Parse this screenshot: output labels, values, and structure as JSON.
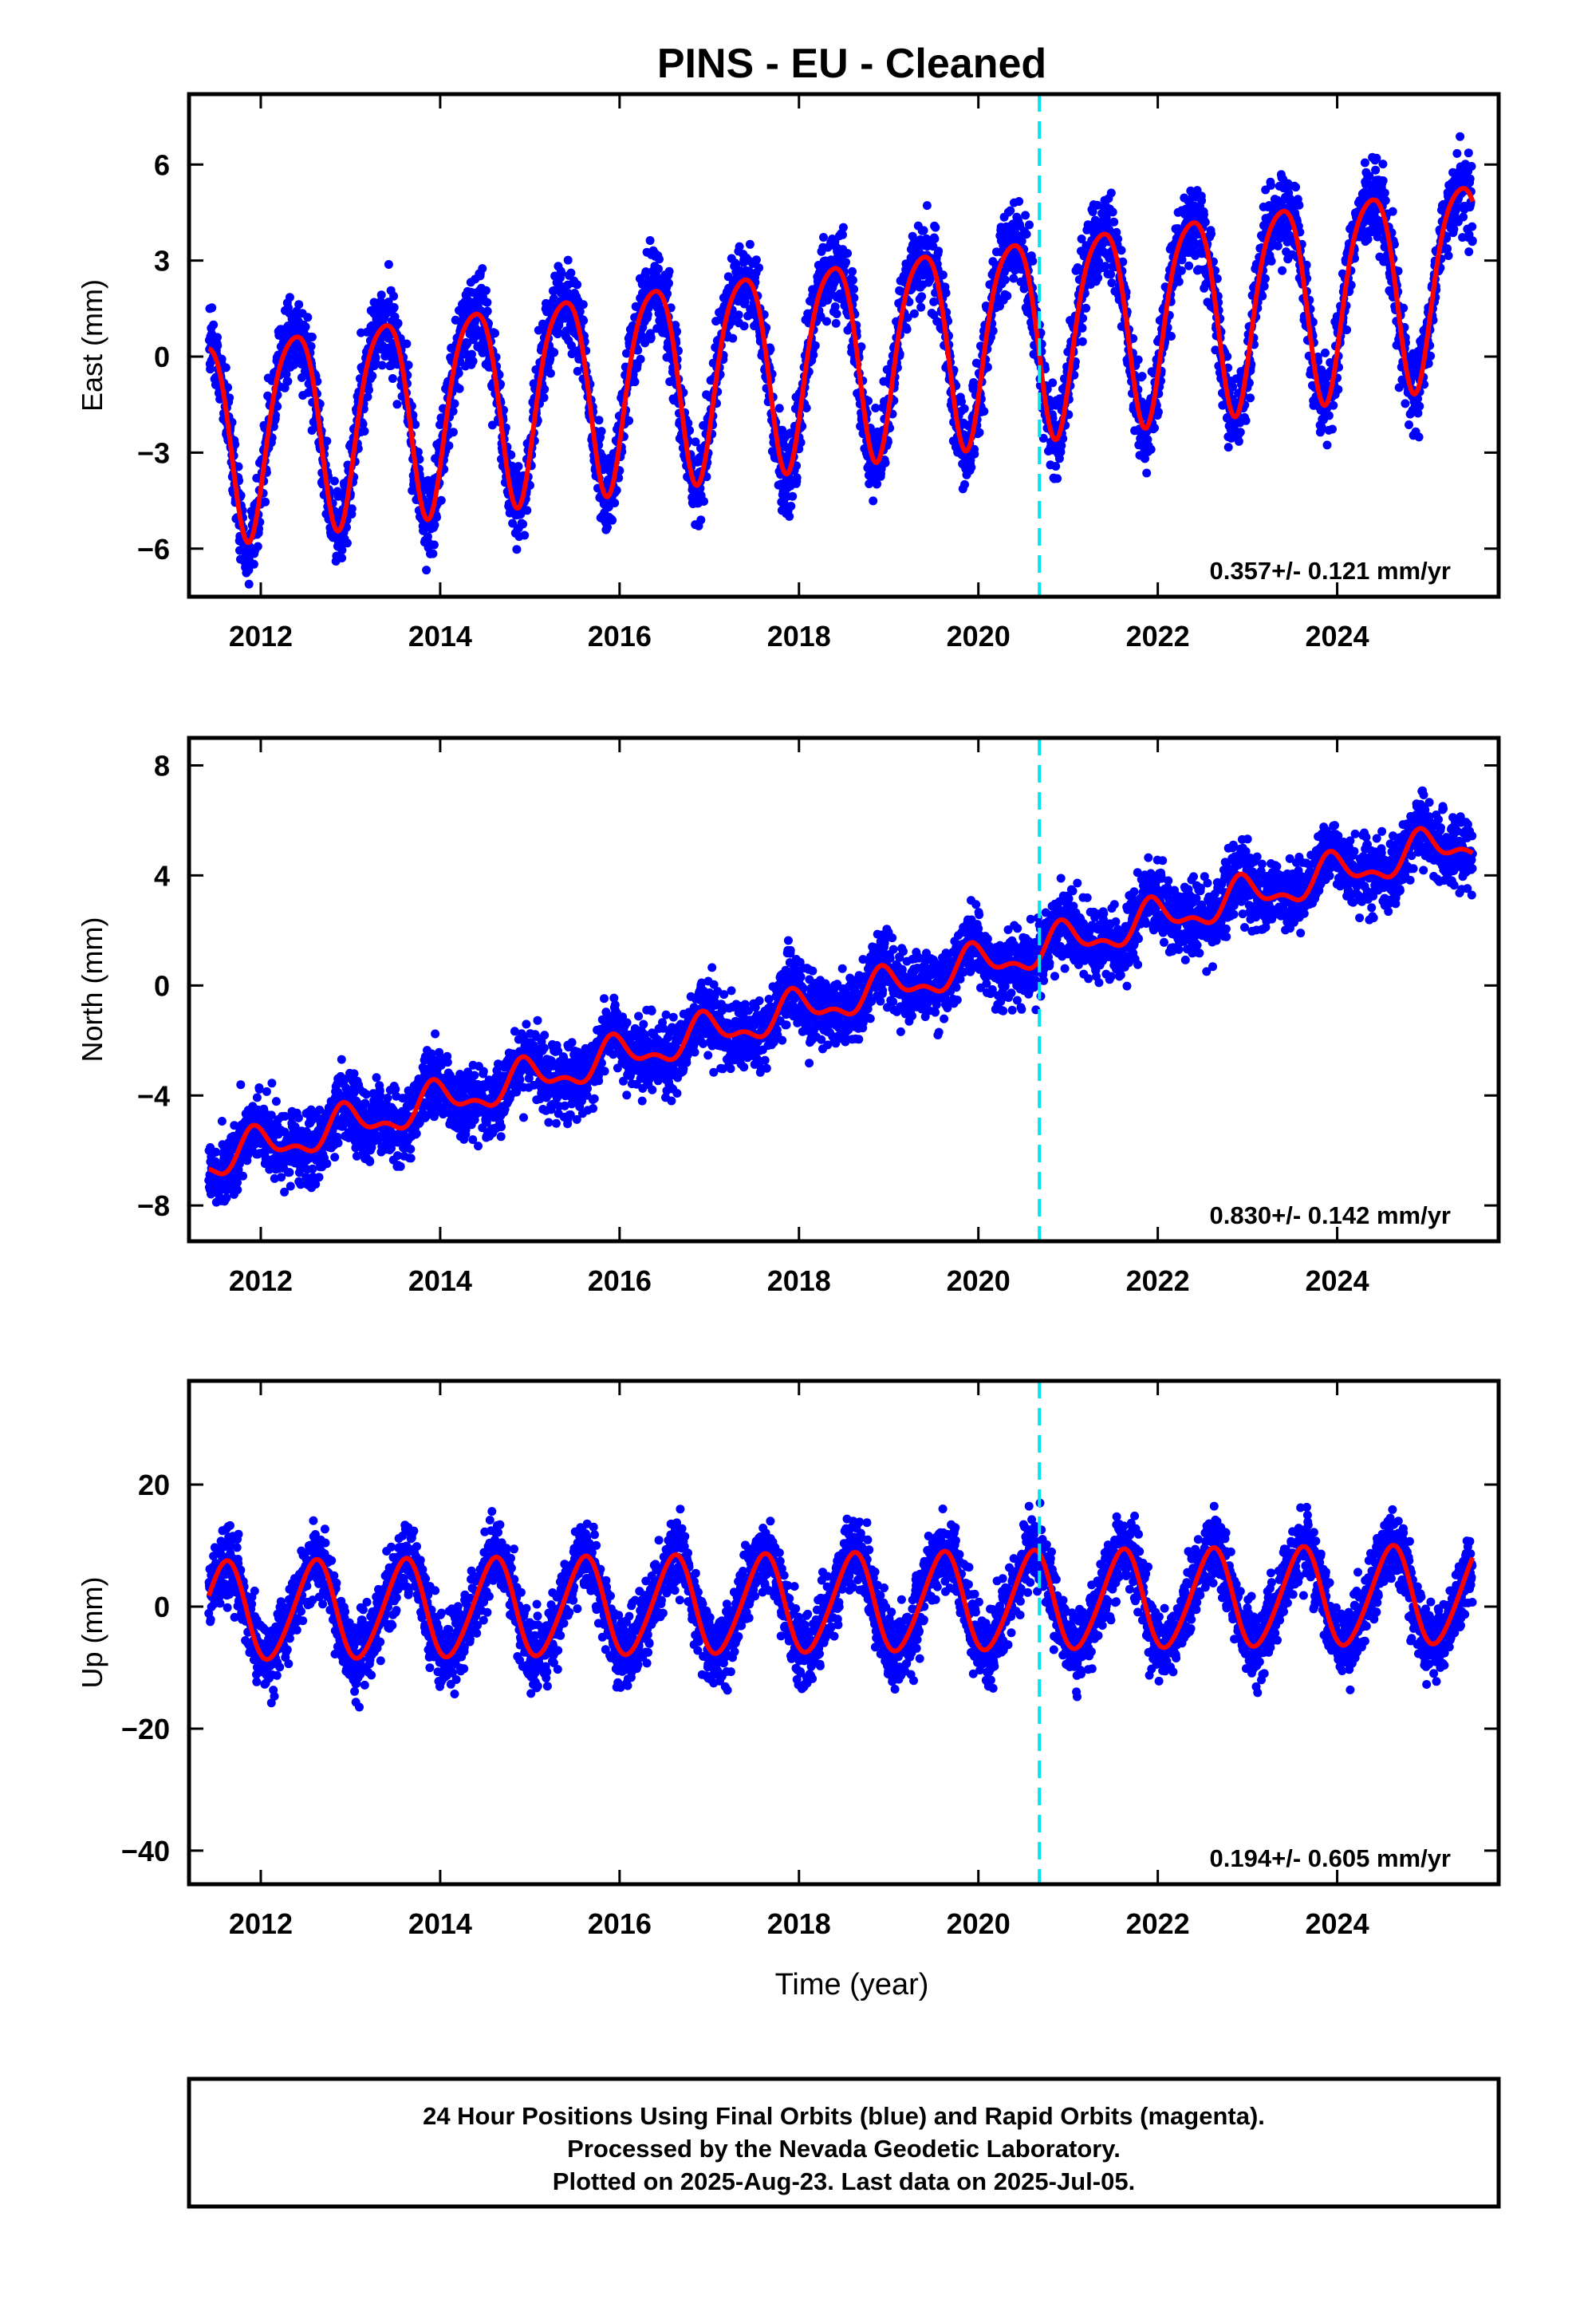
{
  "title": "PINS  - EU - Cleaned",
  "xlabel": "Time (year)",
  "colors": {
    "points": "#0000ff",
    "model": "#ff0000",
    "break_line": "#00e5ee",
    "frame": "#000000"
  },
  "chart_data": [
    {
      "type": "scatter",
      "component": "East",
      "ylabel": "East (mm)",
      "rate_label": "0.357+/- 0.121 mm/yr",
      "xlim": [
        2011.2,
        2025.8
      ],
      "ylim": [
        -7.5,
        8.2
      ],
      "xticks": [
        2012,
        2014,
        2016,
        2018,
        2020,
        2022,
        2024
      ],
      "xtick_labels": [
        "2012",
        "2014",
        "2016",
        "2018",
        "2020",
        "2022",
        "2024"
      ],
      "yticks": [
        -6,
        -3,
        0,
        3,
        6
      ],
      "ytick_labels": [
        "−6",
        "−3",
        "0",
        "3",
        "6"
      ],
      "break_x": 2020.68,
      "model": {
        "t0": 2018.5,
        "offset": 0.15,
        "trend": 0.357,
        "annual": {
          "amp": 3.1,
          "peak": 0.37
        },
        "semiannual": {
          "amp": 0.5,
          "phase": 0.1
        },
        "noise_sd": 0.9
      },
      "series": [
        {
          "kind": "points",
          "x_start": 2011.42,
          "x_end": 2025.51
        },
        {
          "kind": "line",
          "x_start": 2011.42,
          "x_end": 2025.51
        }
      ]
    },
    {
      "type": "scatter",
      "component": "North",
      "ylabel": "North (mm)",
      "rate_label": "0.830+/- 0.142 mm/yr",
      "xlim": [
        2011.2,
        2025.8
      ],
      "ylim": [
        -9.3,
        9.0
      ],
      "xticks": [
        2012,
        2014,
        2016,
        2018,
        2020,
        2022,
        2024
      ],
      "xtick_labels": [
        "2012",
        "2014",
        "2016",
        "2018",
        "2020",
        "2022",
        "2024"
      ],
      "yticks": [
        -8,
        -4,
        0,
        4,
        8
      ],
      "ytick_labels": [
        "−8",
        "−4",
        "0",
        "4",
        "8"
      ],
      "break_x": 2020.68,
      "model": {
        "t0": 2018.5,
        "offset": -0.5,
        "trend": 0.83,
        "annual": {
          "amp": 0.6,
          "peak": 0.95
        },
        "semiannual": {
          "amp": 0.3,
          "phase": 0.4
        },
        "noise_sd": 0.9
      },
      "series": [
        {
          "kind": "points",
          "x_start": 2011.42,
          "x_end": 2025.51
        },
        {
          "kind": "line",
          "x_start": 2011.42,
          "x_end": 2025.51
        }
      ]
    },
    {
      "type": "scatter",
      "component": "Up",
      "ylabel": "Up (mm)",
      "rate_label": "0.194+/- 0.605 mm/yr",
      "xlim": [
        2011.2,
        2025.8
      ],
      "ylim": [
        -45.5,
        37
      ],
      "xticks": [
        2012,
        2014,
        2016,
        2018,
        2020,
        2022,
        2024
      ],
      "xtick_labels": [
        "2012",
        "2014",
        "2016",
        "2018",
        "2020",
        "2022",
        "2024"
      ],
      "yticks": [
        -40,
        -20,
        0,
        20
      ],
      "ytick_labels": [
        "−40",
        "−20",
        "0",
        "20"
      ],
      "break_x": 2020.68,
      "model": {
        "t0": 2018.5,
        "offset": 0.5,
        "trend": 0.194,
        "annual": {
          "amp": 8.0,
          "peak": 0.6
        },
        "semiannual": {
          "amp": 0.8,
          "phase": 0.2
        },
        "noise_sd": 4.2
      },
      "series": [
        {
          "kind": "points",
          "x_start": 2011.42,
          "x_end": 2025.51
        },
        {
          "kind": "line",
          "x_start": 2011.42,
          "x_end": 2025.51
        }
      ]
    }
  ],
  "footer": {
    "line1": "24 Hour Positions Using Final Orbits (blue) and Rapid Orbits (magenta).",
    "line2": "Processed by the Nevada Geodetic Laboratory.",
    "line3": "Plotted on 2025-Aug-23. Last data on 2025-Jul-05."
  }
}
